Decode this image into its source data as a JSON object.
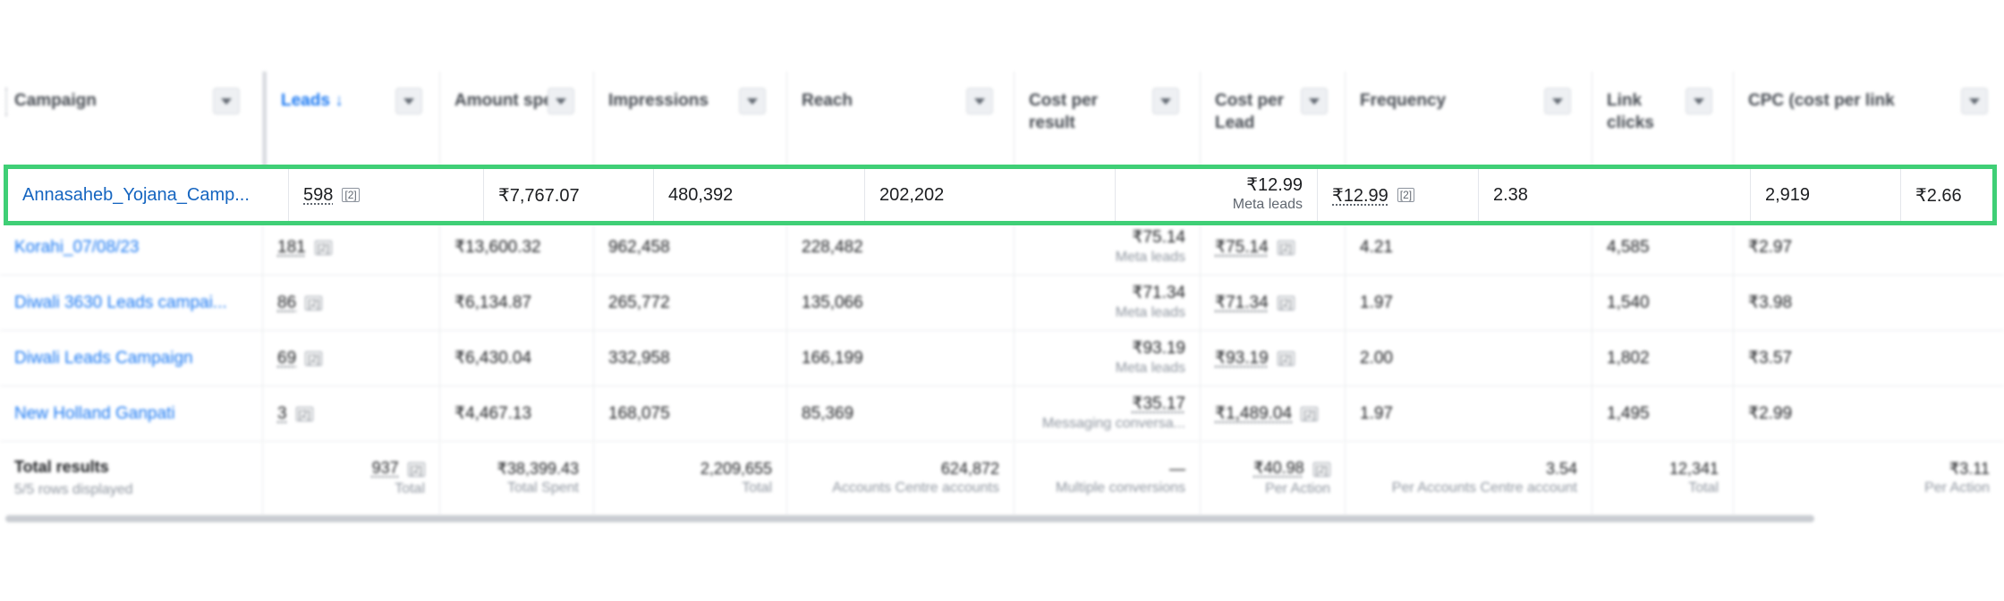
{
  "headers": [
    {
      "label": "Campaign",
      "key": "campaign"
    },
    {
      "label": "Leads ↓",
      "key": "leads"
    },
    {
      "label": "Amount spent",
      "key": "amount"
    },
    {
      "label": "Impressions",
      "key": "impressions"
    },
    {
      "label": "Reach",
      "key": "reach"
    },
    {
      "label": "Cost per result",
      "key": "cpr"
    },
    {
      "label": "Cost per Lead",
      "key": "cpl"
    },
    {
      "label": "Frequency",
      "key": "frequency"
    },
    {
      "label": "Link clicks",
      "key": "link_clicks"
    },
    {
      "label": "CPC (cost per link",
      "key": "cpc"
    }
  ],
  "highlighted_row": {
    "campaign": "Annasaheb_Yojana_Camp...",
    "leads": "598",
    "leads_badge": "[2]",
    "amount": "₹7,767.07",
    "impressions": "480,392",
    "reach": "202,202",
    "cpr": "₹12.99",
    "cpr_sub": "Meta leads",
    "cpl": "₹12.99",
    "cpl_badge": "[2]",
    "frequency": "2.38",
    "link_clicks": "2,919",
    "cpc": "₹2.66"
  },
  "rows": [
    {
      "campaign": "Korahi_07/08/23",
      "leads": "181",
      "leads_badge": "[2]",
      "amount": "₹13,600.32",
      "impressions": "962,458",
      "reach": "228,482",
      "cpr": "₹75.14",
      "cpr_sub": "Meta leads",
      "cpl": "₹75.14",
      "cpl_badge": "[2]",
      "frequency": "4.21",
      "link_clicks": "4,585",
      "cpc": "₹2.97"
    },
    {
      "campaign": "Diwali 3630 Leads campai...",
      "leads": "86",
      "leads_badge": "[2]",
      "amount": "₹6,134.87",
      "impressions": "265,772",
      "reach": "135,066",
      "cpr": "₹71.34",
      "cpr_sub": "Meta leads",
      "cpl": "₹71.34",
      "cpl_badge": "[2]",
      "frequency": "1.97",
      "link_clicks": "1,540",
      "cpc": "₹3.98"
    },
    {
      "campaign": "Diwali Leads Campaign",
      "leads": "69",
      "leads_badge": "[2]",
      "amount": "₹6,430.04",
      "impressions": "332,958",
      "reach": "166,199",
      "cpr": "₹93.19",
      "cpr_sub": "Meta leads",
      "cpl": "₹93.19",
      "cpl_badge": "[2]",
      "frequency": "2.00",
      "link_clicks": "1,802",
      "cpc": "₹3.57"
    },
    {
      "campaign": "New Holland Ganpati",
      "leads": "3",
      "leads_badge": "[2]",
      "amount": "₹4,467.13",
      "impressions": "168,075",
      "reach": "85,369",
      "cpr": "₹35.17",
      "cpr_sub": "Messaging conversa...",
      "cpl": "₹1,489.04",
      "cpl_badge": "[2]",
      "frequency": "1.97",
      "link_clicks": "1,495",
      "cpc": "₹2.99"
    }
  ],
  "totals": {
    "title": "Total results",
    "subtitle": "5/5 rows displayed",
    "leads": "937",
    "leads_badge": "[2]",
    "leads_sub": "Total",
    "amount": "₹38,399.43",
    "amount_sub": "Total Spent",
    "impressions": "2,209,655",
    "impressions_sub": "Total",
    "reach": "624,872",
    "reach_sub": "Accounts Centre accounts",
    "cpr": "—",
    "cpr_sub": "Multiple conversions",
    "cpl": "₹40.98",
    "cpl_badge": "[2]",
    "cpl_sub": "Per Action",
    "frequency": "3.54",
    "frequency_sub": "Per Accounts Centre account",
    "link_clicks": "12,341",
    "link_clicks_sub": "Total",
    "cpc": "₹3.11",
    "cpc_sub": "Per Action"
  }
}
